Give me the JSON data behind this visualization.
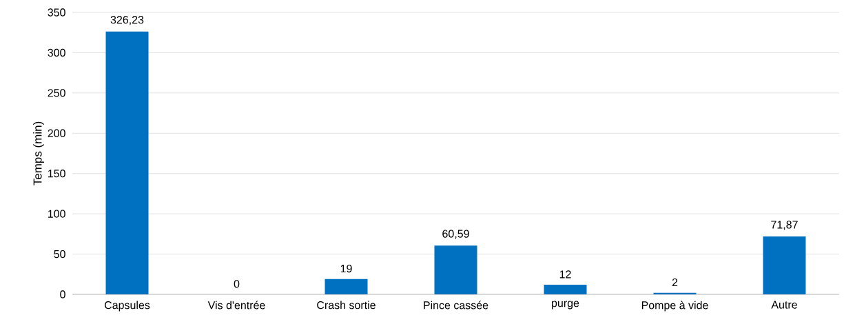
{
  "chart_data": {
    "type": "bar",
    "ylabel": "Temps (min)",
    "categories": [
      "Capsules",
      "Vis d'entrée",
      "Crash sortie",
      "Pince cassée",
      "purge",
      "Pompe à vide",
      "Autre"
    ],
    "values": [
      326.23,
      0,
      19,
      60.59,
      12,
      2,
      71.87
    ],
    "value_labels": [
      "326,23",
      "0",
      "19",
      "60,59",
      "12",
      "2",
      "71,87"
    ],
    "color": "#0070c0",
    "ylim": [
      0,
      350
    ],
    "yticks": [
      0,
      50,
      100,
      150,
      200,
      250,
      300,
      350
    ],
    "grid": "y"
  }
}
